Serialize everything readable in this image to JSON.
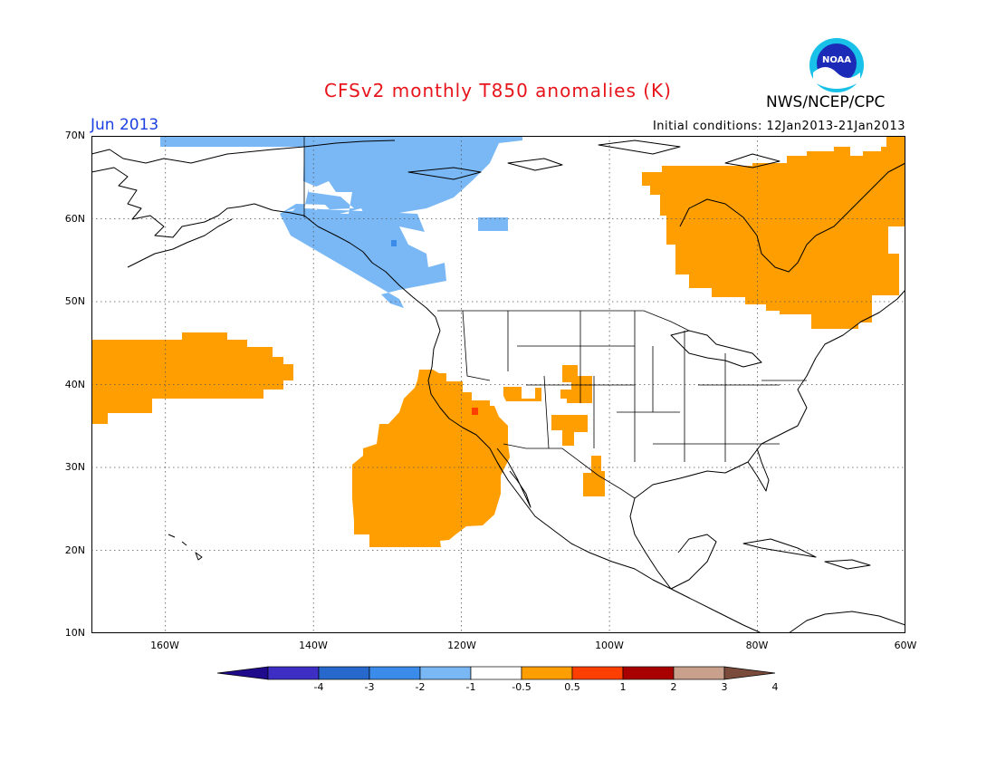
{
  "title": "CFSv2 monthly T850 anomalies (K)",
  "agency": "NWS/NCEP/CPC",
  "logo_text": "NOAA",
  "valid_month": "Jun 2013",
  "initial_conditions": "Initial conditions: 12Jan2013-21Jan2013",
  "lat_labels": [
    "70N",
    "60N",
    "50N",
    "40N",
    "30N",
    "20N",
    "10N"
  ],
  "lon_labels": [
    "160W",
    "140W",
    "120W",
    "100W",
    "80W",
    "60W"
  ],
  "colorbar": {
    "labels": [
      "-4",
      "-3",
      "-2",
      "-1",
      "-0.5",
      "0.5",
      "1",
      "2",
      "3",
      "4"
    ],
    "colors": [
      "#1f0a8c",
      "#3d2fc4",
      "#2668cc",
      "#3b8cea",
      "#7ab8f5",
      "#ffffff",
      "#ff9e00",
      "#ff3f00",
      "#a80000",
      "#c8a08c",
      "#7a4a3a"
    ]
  },
  "map": {
    "extent": {
      "lon_min": -170,
      "lon_max": -60,
      "lat_min": 10,
      "lat_max": 70
    },
    "anomaly_colors": {
      "cold": "#7ab8f5",
      "cold_strong": "#3b8cea",
      "warm": "#ff9e00",
      "warm_strong": "#ff3f00"
    }
  }
}
